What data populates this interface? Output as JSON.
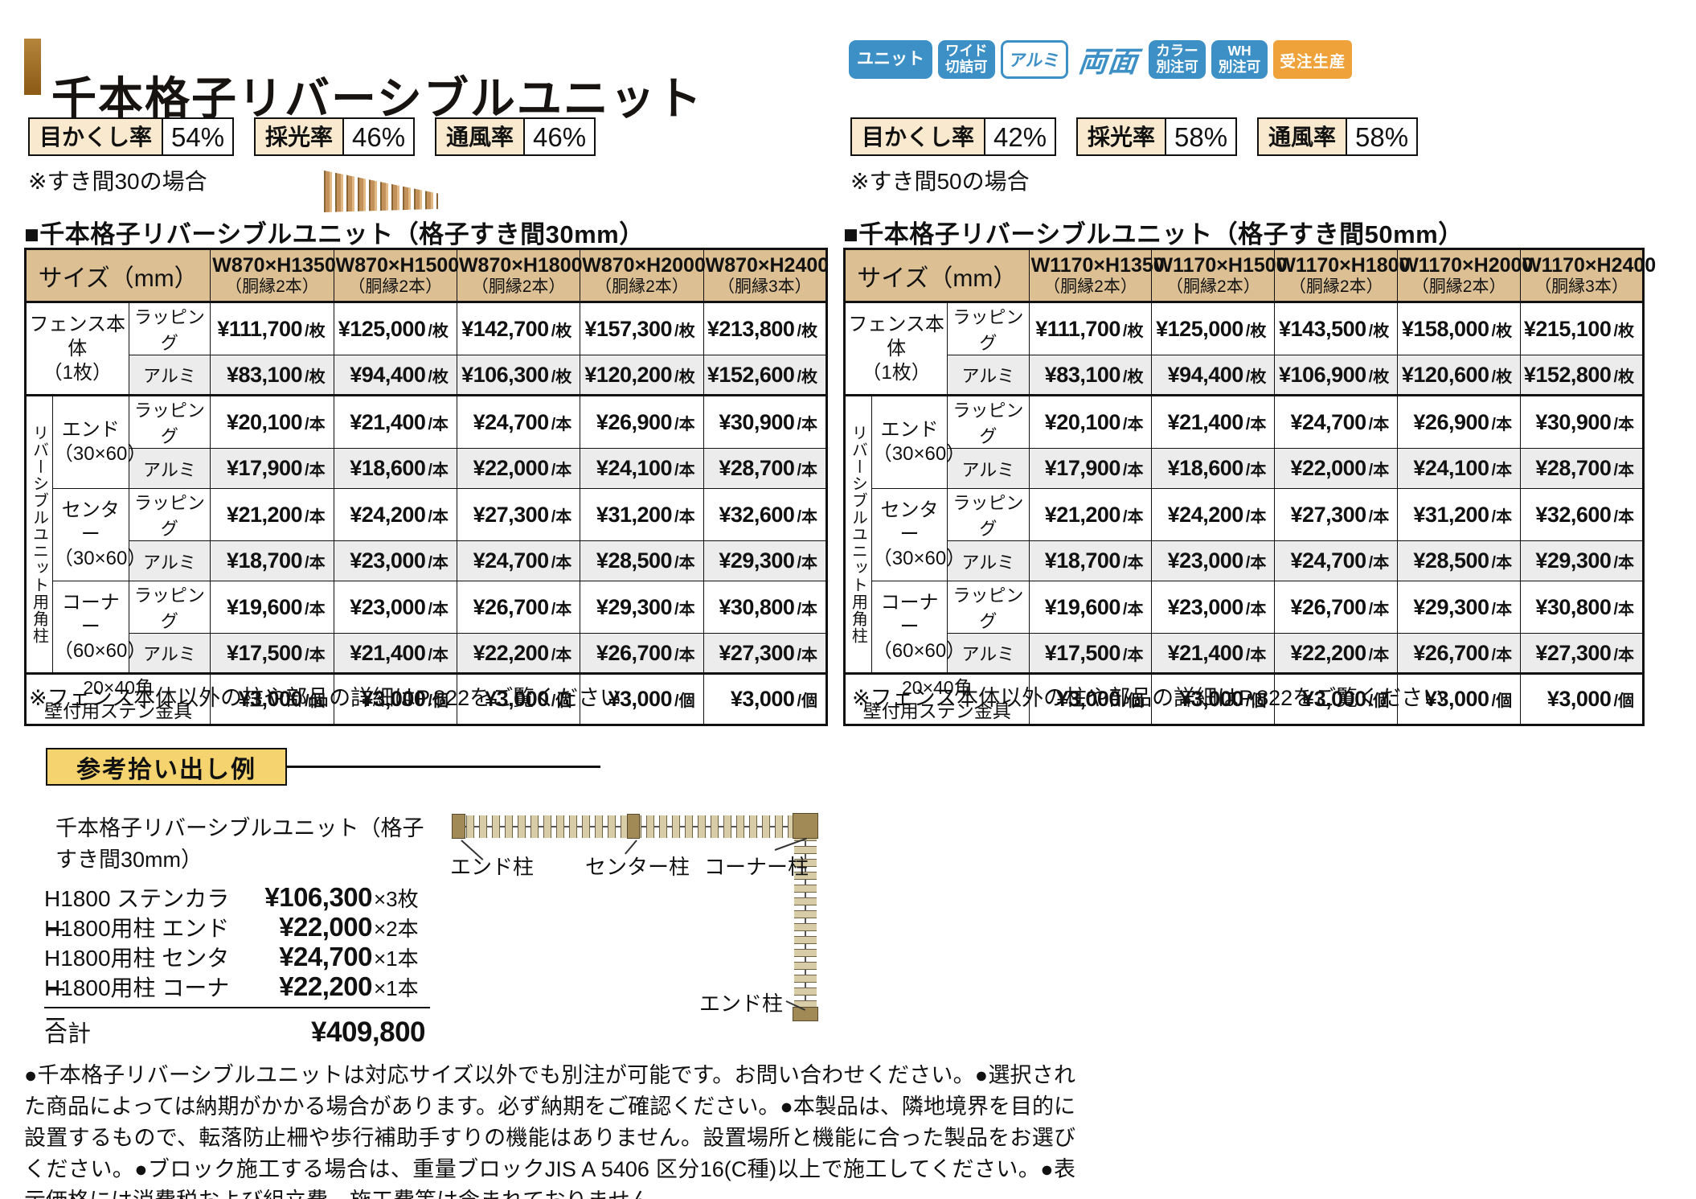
{
  "header": {
    "title": "千本格子リバーシブルユニット",
    "badges": [
      {
        "label": "ユニット"
      },
      {
        "label": "ワイド\n切詰可"
      },
      {
        "label": "アルミ"
      },
      {
        "label": "両面"
      },
      {
        "label": "カラー\n別注可"
      },
      {
        "label": "WH\n別注可"
      },
      {
        "label": "受注生産"
      }
    ]
  },
  "stats_left": {
    "caption": "※すき間30の場合",
    "items": [
      {
        "label": "目かくし率",
        "value": "54%"
      },
      {
        "label": "採光率",
        "value": "46%"
      },
      {
        "label": "通風率",
        "value": "46%"
      }
    ]
  },
  "stats_right": {
    "caption": "※すき間50の場合",
    "items": [
      {
        "label": "目かくし率",
        "value": "42%"
      },
      {
        "label": "採光率",
        "value": "58%"
      },
      {
        "label": "通風率",
        "value": "58%"
      }
    ]
  },
  "tables": [
    {
      "title": "■千本格子リバーシブルユニット（格子すき間30mm）",
      "size_header": "サイズ（mm）",
      "columns": [
        {
          "size": "W870×H1350",
          "sub": "（胴縁2本）"
        },
        {
          "size": "W870×H1500",
          "sub": "（胴縁2本）"
        },
        {
          "size": "W870×H1800",
          "sub": "（胴縁2本）"
        },
        {
          "size": "W870×H2000",
          "sub": "（胴縁2本）"
        },
        {
          "size": "W870×H2400",
          "sub": "（胴縁3本）"
        }
      ],
      "fence": {
        "label": "フェンス本体\n（1枚）",
        "rows": [
          {
            "type": "ラッピング",
            "unit": "/枚",
            "values": [
              "¥111,700",
              "¥125,000",
              "¥142,700",
              "¥157,300",
              "¥213,800"
            ]
          },
          {
            "type": "アルミ",
            "unit": "/枚",
            "values": [
              "¥83,100",
              "¥94,400",
              "¥106,300",
              "¥120,200",
              "¥152,600"
            ]
          }
        ]
      },
      "post_group_label": "リバーシブルユニット用角柱",
      "posts": [
        {
          "label": "エンド",
          "size": "（30×60）",
          "rows": [
            {
              "type": "ラッピング",
              "unit": "/本",
              "values": [
                "¥20,100",
                "¥21,400",
                "¥24,700",
                "¥26,900",
                "¥30,900"
              ]
            },
            {
              "type": "アルミ",
              "unit": "/本",
              "values": [
                "¥17,900",
                "¥18,600",
                "¥22,000",
                "¥24,100",
                "¥28,700"
              ]
            }
          ]
        },
        {
          "label": "センター",
          "size": "（30×60）",
          "rows": [
            {
              "type": "ラッピング",
              "unit": "/本",
              "values": [
                "¥21,200",
                "¥24,200",
                "¥27,300",
                "¥31,200",
                "¥32,600"
              ]
            },
            {
              "type": "アルミ",
              "unit": "/本",
              "values": [
                "¥18,700",
                "¥23,000",
                "¥24,700",
                "¥28,500",
                "¥29,300"
              ]
            }
          ]
        },
        {
          "label": "コーナー",
          "size": "（60×60）",
          "rows": [
            {
              "type": "ラッピング",
              "unit": "/本",
              "values": [
                "¥19,600",
                "¥23,000",
                "¥26,700",
                "¥29,300",
                "¥30,800"
              ]
            },
            {
              "type": "アルミ",
              "unit": "/本",
              "values": [
                "¥17,500",
                "¥21,400",
                "¥22,200",
                "¥26,700",
                "¥27,300"
              ]
            }
          ]
        }
      ],
      "bracket": {
        "label": "20×40角\n壁付用ステン金具",
        "unit": "/個",
        "values": [
          "¥3,000",
          "¥3,000",
          "¥3,000",
          "¥3,000",
          "¥3,000"
        ]
      },
      "note": "※フェンス本体以外の柱や部品の詳細はP.822をご覧ください"
    },
    {
      "title": "■千本格子リバーシブルユニット（格子すき間50mm）",
      "size_header": "サイズ（mm）",
      "columns": [
        {
          "size": "W1170×H1350",
          "sub": "（胴縁2本）"
        },
        {
          "size": "W1170×H1500",
          "sub": "（胴縁2本）"
        },
        {
          "size": "W1170×H1800",
          "sub": "（胴縁2本）"
        },
        {
          "size": "W1170×H2000",
          "sub": "（胴縁2本）"
        },
        {
          "size": "W1170×H2400",
          "sub": "（胴縁3本）"
        }
      ],
      "fence": {
        "label": "フェンス本体\n（1枚）",
        "rows": [
          {
            "type": "ラッピング",
            "unit": "/枚",
            "values": [
              "¥111,700",
              "¥125,000",
              "¥143,500",
              "¥158,000",
              "¥215,100"
            ]
          },
          {
            "type": "アルミ",
            "unit": "/枚",
            "values": [
              "¥83,100",
              "¥94,400",
              "¥106,900",
              "¥120,600",
              "¥152,800"
            ]
          }
        ]
      },
      "post_group_label": "リバーシブルユニット用角柱",
      "posts": [
        {
          "label": "エンド",
          "size": "（30×60）",
          "rows": [
            {
              "type": "ラッピング",
              "unit": "/本",
              "values": [
                "¥20,100",
                "¥21,400",
                "¥24,700",
                "¥26,900",
                "¥30,900"
              ]
            },
            {
              "type": "アルミ",
              "unit": "/本",
              "values": [
                "¥17,900",
                "¥18,600",
                "¥22,000",
                "¥24,100",
                "¥28,700"
              ]
            }
          ]
        },
        {
          "label": "センター",
          "size": "（30×60）",
          "rows": [
            {
              "type": "ラッピング",
              "unit": "/本",
              "values": [
                "¥21,200",
                "¥24,200",
                "¥27,300",
                "¥31,200",
                "¥32,600"
              ]
            },
            {
              "type": "アルミ",
              "unit": "/本",
              "values": [
                "¥18,700",
                "¥23,000",
                "¥24,700",
                "¥28,500",
                "¥29,300"
              ]
            }
          ]
        },
        {
          "label": "コーナー",
          "size": "（60×60）",
          "rows": [
            {
              "type": "ラッピング",
              "unit": "/本",
              "values": [
                "¥19,600",
                "¥23,000",
                "¥26,700",
                "¥29,300",
                "¥30,800"
              ]
            },
            {
              "type": "アルミ",
              "unit": "/本",
              "values": [
                "¥17,500",
                "¥21,400",
                "¥22,200",
                "¥26,700",
                "¥27,300"
              ]
            }
          ]
        }
      ],
      "bracket": {
        "label": "20×40角\n壁付用ステン金具",
        "unit": "/個",
        "values": [
          "¥3,000",
          "¥3,000",
          "¥3,000",
          "¥3,000",
          "¥3,000"
        ]
      },
      "note": "※フェンス本体以外の柱や部品の詳細はP.822をご覧ください"
    }
  ],
  "takeoff": {
    "heading": "参考拾い出し例",
    "intro": "千本格子リバーシブルユニット（格子すき間30mm）",
    "items": [
      {
        "label": "H1800 ステンカラー",
        "price": "¥106,300",
        "qty": "×3枚"
      },
      {
        "label": "H1800用柱 エンド",
        "price": "¥22,000",
        "qty": "×2本"
      },
      {
        "label": "H1800用柱 センター",
        "price": "¥24,700",
        "qty": "×1本"
      },
      {
        "label": "H1800用柱 コーナー",
        "price": "¥22,200",
        "qty": "×1本"
      }
    ],
    "total_label": "合計",
    "total_value": "¥409,800"
  },
  "diagram": {
    "end_top": "エンド柱",
    "center": "センター柱",
    "corner": "コーナー柱",
    "end_bottom": "エンド柱"
  },
  "footnotes": "●千本格子リバーシブルユニットは対応サイズ以外でも別注が可能です。お問い合わせください。●選択された商品によっては納期がかかる場合があります。必ず納期をご確認ください。●本製品は、隣地境界を目的に設置するもので、転落防止柵や歩行補助手すりの機能はありません。設置場所と機能に合った製品をお選びください。●ブロック施工する場合は、重量ブロックJIS A 5406 区分16(C種)以上で施工してください。●表示価格には消費税および組立費、施工費等は含まれておりません。",
  "colors": {
    "accent_brown": "#9c6b24",
    "badge_blue": "#3d90c6",
    "badge_orange": "#efa23a",
    "table_header_tan": "#dcc094",
    "row_gray": "#ececec",
    "stat_label_cream": "#f9e9ce",
    "takeoff_gold": "#f5d470",
    "border_black": "#111111"
  }
}
